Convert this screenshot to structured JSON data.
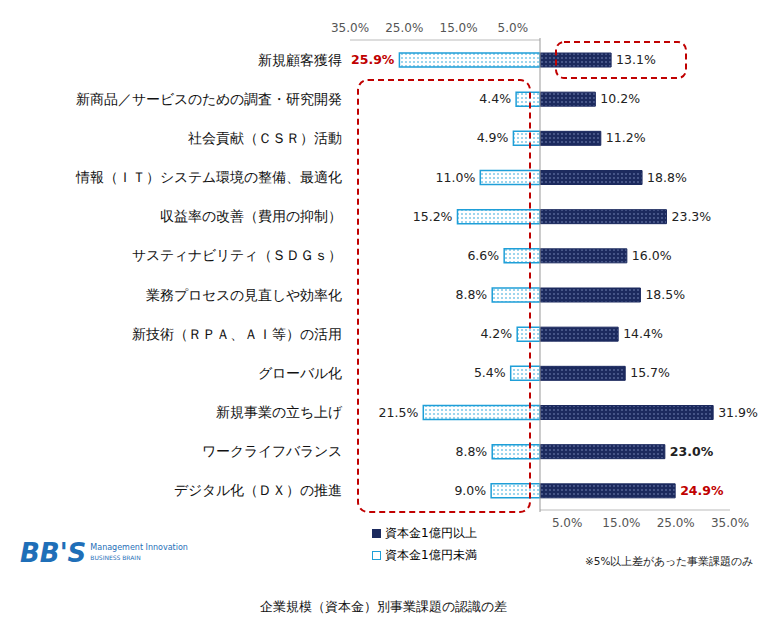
{
  "chart_data": {
    "type": "bar",
    "orientation": "horizontal",
    "title": "企業規模（資本金）別事業課題の認識の差",
    "annotations": [
      "※5%以上差があった事業課題のみ"
    ],
    "logo": [
      "BB'S",
      "Management Innovation",
      "BUSINESS BRAIN"
    ],
    "categories": [
      "新規顧客獲得",
      "新商品／サービスのための調査・研究開発",
      "社会貢献（ＣＳＲ）活動",
      "情報（ＩＴ）システム環境の整備、最適化",
      "収益率の改善（費用の抑制）",
      "サスティナビリティ（ＳＤＧｓ）",
      "業務プロセスの見直しや効率化",
      "新技術（ＲＰＡ、ＡＩ等）の活用",
      "グローバル化",
      "新規事業の立ち上げ",
      "ワークライフバランス",
      "デジタル化（ＤＸ）の推進"
    ],
    "series": [
      {
        "name": "資本金1億円以上",
        "color": "#1c2a5e",
        "values": [
          13.1,
          10.2,
          11.2,
          18.8,
          23.3,
          16.0,
          18.5,
          14.4,
          15.7,
          31.9,
          23.0,
          24.9
        ],
        "value_labels": [
          "13.1%",
          "10.2%",
          "11.2%",
          "18.8%",
          "23.3%",
          "16.0%",
          "18.5%",
          "14.4%",
          "15.7%",
          "31.9%",
          "23.0%",
          "24.9%"
        ]
      },
      {
        "name": "資本金1億円未満",
        "color": "#1f9fd8",
        "values": [
          25.9,
          4.4,
          4.9,
          11.0,
          15.2,
          6.6,
          8.8,
          4.2,
          5.4,
          21.5,
          8.8,
          9.0
        ],
        "value_labels": [
          "25.9%",
          "4.4%",
          "4.9%",
          "11.0%",
          "15.2%",
          "6.6%",
          "8.8%",
          "4.2%",
          "5.4%",
          "21.5%",
          "8.8%",
          "9.0%"
        ]
      }
    ],
    "xlim": [
      0,
      35
    ],
    "xticks": [
      {
        "value": 5,
        "label": "5.0%"
      },
      {
        "value": 15,
        "label": "15.0%"
      },
      {
        "value": 25,
        "label": "25.0%"
      },
      {
        "value": 35,
        "label": "35.0%"
      }
    ],
    "grid": false,
    "legend": "bottom",
    "data_labels": true
  }
}
